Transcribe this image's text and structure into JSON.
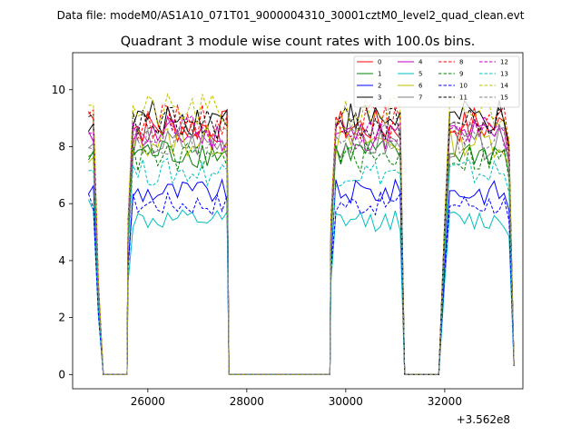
{
  "suptitle": "Data file: modeM0/AS1A10_071T01_9000004310_30001cztM0_level2_quad_clean.evt",
  "chart_data": {
    "type": "line",
    "title": "Quadrant 3 module wise count rates with 100.0s bins.",
    "xlabel": "",
    "ylabel": "",
    "offset_label": "+3.562e8",
    "xlim": [
      24480,
      33580
    ],
    "ylim": [
      -0.5,
      11.3
    ],
    "xticks": [
      26000,
      28000,
      30000,
      32000
    ],
    "xtick_labels": [
      "26000",
      "28000",
      "30000",
      "32000"
    ],
    "yticks": [
      0,
      2,
      4,
      6,
      8,
      10
    ],
    "ytick_labels": [
      "0",
      "2",
      "4",
      "6",
      "8",
      "10"
    ],
    "legend_position": "top-right",
    "segments": [
      {
        "start": 24800,
        "n": 3
      },
      {
        "start": 25600,
        "n": 21
      },
      {
        "start": 29700,
        "n": 15
      },
      {
        "start": 32000,
        "n": 14
      }
    ],
    "gaps": [
      [
        25050,
        25600
      ],
      [
        27600,
        29700
      ],
      [
        31150,
        31900
      ]
    ],
    "data_end": 33400,
    "series": [
      {
        "name": "0",
        "color": "#ff0000",
        "dashed": false,
        "level": 8.7,
        "first": 9.2
      },
      {
        "name": "1",
        "color": "#008000",
        "dashed": false,
        "level": 7.8,
        "first": 7.6
      },
      {
        "name": "2",
        "color": "#0000ff",
        "dashed": false,
        "level": 6.4,
        "first": 6.5
      },
      {
        "name": "3",
        "color": "#000000",
        "dashed": false,
        "level": 9.0,
        "first": 8.8
      },
      {
        "name": "4",
        "color": "#bf00bf",
        "dashed": false,
        "level": 8.4,
        "first": 8.3
      },
      {
        "name": "5",
        "color": "#00bfbf",
        "dashed": false,
        "level": 5.4,
        "first": 6.0
      },
      {
        "name": "6",
        "color": "#bfbf00",
        "dashed": false,
        "level": 8.2,
        "first": 7.4
      },
      {
        "name": "7",
        "color": "#808080",
        "dashed": false,
        "level": 8.1,
        "first": 8.0
      },
      {
        "name": "8",
        "color": "#ff0000",
        "dashed": true,
        "level": 8.9,
        "first": 9.3
      },
      {
        "name": "9",
        "color": "#008000",
        "dashed": true,
        "level": 7.6,
        "first": 7.9
      },
      {
        "name": "10",
        "color": "#0000ff",
        "dashed": true,
        "level": 6.0,
        "first": 6.1
      },
      {
        "name": "11",
        "color": "#000000",
        "dashed": true,
        "level": 8.8,
        "first": 8.9
      },
      {
        "name": "12",
        "color": "#bf00bf",
        "dashed": true,
        "level": 8.5,
        "first": 8.4
      },
      {
        "name": "13",
        "color": "#00bfbf",
        "dashed": true,
        "level": 7.1,
        "first": 7.2
      },
      {
        "name": "14",
        "color": "#bfbf00",
        "dashed": true,
        "level": 9.2,
        "first": 9.6
      },
      {
        "name": "15",
        "color": "#808080",
        "dashed": true,
        "level": 8.3,
        "first": 8.2
      }
    ]
  }
}
